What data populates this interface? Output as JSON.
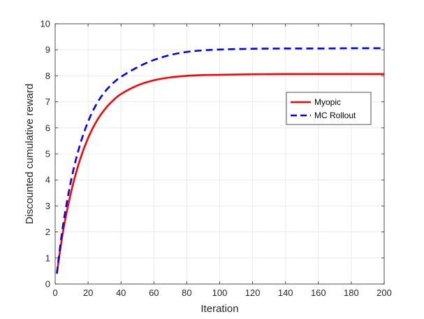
{
  "chart_data": {
    "type": "line",
    "title": "",
    "xlabel": "Iteration",
    "ylabel": "Discounted cumulative reward",
    "xlim": [
      0,
      200
    ],
    "ylim": [
      0,
      10
    ],
    "xticks": [
      0,
      20,
      40,
      60,
      80,
      100,
      120,
      140,
      160,
      180,
      200
    ],
    "yticks": [
      0,
      1,
      2,
      3,
      4,
      5,
      6,
      7,
      8,
      9,
      10
    ],
    "grid": true,
    "legend": "right",
    "series": [
      {
        "name": "Myopic",
        "color": "#ff0000",
        "dash": "solid",
        "x": [
          1,
          5,
          10,
          15,
          20,
          25,
          30,
          35,
          40,
          50,
          60,
          70,
          80,
          90,
          100,
          120,
          140,
          160,
          180,
          200
        ],
        "y": [
          0.4,
          2.1,
          3.62,
          4.76,
          5.61,
          6.24,
          6.7,
          7.04,
          7.3,
          7.63,
          7.83,
          7.94,
          8.0,
          8.03,
          8.04,
          8.06,
          8.07,
          8.07,
          8.07,
          8.07
        ]
      },
      {
        "name": "MC Rollout",
        "color": "#0000ff",
        "dash": "dashed",
        "x": [
          1,
          5,
          10,
          15,
          20,
          25,
          30,
          35,
          40,
          50,
          60,
          70,
          80,
          90,
          100,
          120,
          140,
          160,
          180,
          200
        ],
        "y": [
          0.4,
          2.35,
          4.08,
          5.33,
          6.24,
          6.9,
          7.37,
          7.71,
          7.96,
          8.33,
          8.61,
          8.8,
          8.92,
          8.98,
          9.01,
          9.04,
          9.05,
          9.05,
          9.06,
          9.06
        ]
      }
    ]
  }
}
